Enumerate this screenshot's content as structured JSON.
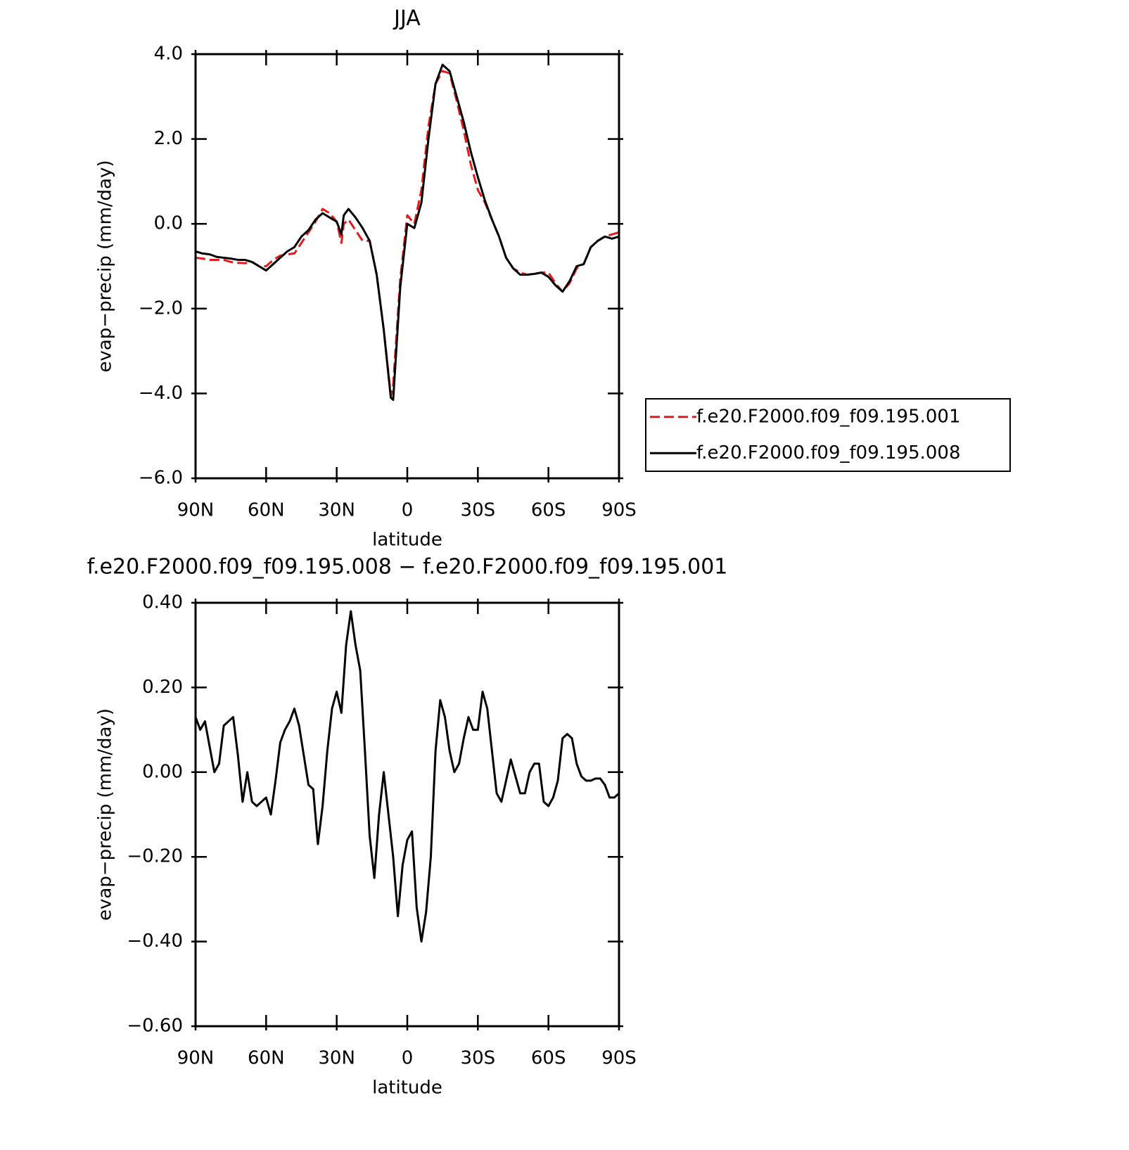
{
  "chart_data": [
    {
      "type": "line",
      "title": "JJA",
      "xlabel": "latitude",
      "ylabel": "evap−precip (mm/day)",
      "x": [
        90,
        87,
        84,
        81,
        78,
        75,
        72,
        69,
        66,
        63,
        60,
        57,
        54,
        51,
        48,
        45,
        42,
        39,
        36,
        33,
        30,
        28,
        27,
        25,
        22,
        19,
        16,
        13,
        10,
        7,
        6,
        3,
        0,
        -3,
        -6,
        -9,
        -12,
        -15,
        -18,
        -21,
        -24,
        -27,
        -30,
        -33,
        -36,
        -39,
        -42,
        -45,
        -48,
        -51,
        -54,
        -57,
        -60,
        -63,
        -66,
        -69,
        -72,
        -75,
        -78,
        -81,
        -84,
        -87,
        -90
      ],
      "series": [
        {
          "name": "f.e20.F2000.f09_f09.195.001",
          "color": "#e41a1c",
          "linestyle": "dashed",
          "values": [
            -0.8,
            -0.82,
            -0.85,
            -0.85,
            -0.85,
            -0.9,
            -0.92,
            -0.93,
            -0.9,
            -1.0,
            -1.0,
            -0.85,
            -0.75,
            -0.72,
            -0.7,
            -0.45,
            -0.2,
            0.05,
            0.35,
            0.25,
            0.05,
            -0.45,
            0.0,
            0.1,
            -0.15,
            -0.4,
            -0.4,
            -1.2,
            -2.5,
            -4.05,
            -3.8,
            -1.3,
            0.2,
            0.0,
            0.8,
            2.3,
            3.3,
            3.6,
            3.55,
            2.9,
            2.2,
            1.4,
            0.8,
            0.5,
            0.1,
            -0.3,
            -0.8,
            -1.05,
            -1.15,
            -1.2,
            -1.18,
            -1.15,
            -1.15,
            -1.4,
            -1.6,
            -1.4,
            -1.05,
            -0.95,
            -0.55,
            -0.4,
            -0.3,
            -0.25,
            -0.2
          ]
        },
        {
          "name": "f.e20.F2000.f09_f09.195.008",
          "color": "#000000",
          "linestyle": "solid",
          "values": [
            -0.65,
            -0.7,
            -0.72,
            -0.78,
            -0.8,
            -0.82,
            -0.85,
            -0.85,
            -0.9,
            -1.0,
            -1.1,
            -0.95,
            -0.8,
            -0.65,
            -0.55,
            -0.3,
            -0.15,
            0.1,
            0.25,
            0.15,
            0.05,
            -0.25,
            0.2,
            0.35,
            0.15,
            -0.1,
            -0.4,
            -1.2,
            -2.5,
            -4.1,
            -4.15,
            -1.5,
            0.0,
            -0.1,
            0.5,
            2.0,
            3.3,
            3.75,
            3.6,
            3.0,
            2.4,
            1.7,
            1.1,
            0.55,
            0.1,
            -0.3,
            -0.8,
            -1.05,
            -1.2,
            -1.2,
            -1.18,
            -1.15,
            -1.25,
            -1.45,
            -1.6,
            -1.35,
            -1.0,
            -0.95,
            -0.55,
            -0.4,
            -0.3,
            -0.35,
            -0.3
          ]
        }
      ],
      "xlim": [
        90,
        -90
      ],
      "xticks": [
        {
          "value": 90,
          "label": "90N"
        },
        {
          "value": 60,
          "label": "60N"
        },
        {
          "value": 30,
          "label": "30N"
        },
        0,
        {
          "value": -30,
          "label": "30S"
        },
        {
          "value": -60,
          "label": "60S"
        },
        {
          "value": -90,
          "label": "90S"
        }
      ],
      "ylim": [
        -6,
        4
      ],
      "yticks": [
        {
          "value": 4,
          "label": "4.0"
        },
        {
          "value": 2,
          "label": "2.0"
        },
        {
          "value": 0,
          "label": "0.0"
        },
        {
          "value": -2,
          "label": "−2.0"
        },
        {
          "value": -4,
          "label": "−4.0"
        },
        {
          "value": -6,
          "label": "−6.0"
        }
      ],
      "legend": "outside-right"
    },
    {
      "type": "line",
      "title": "f.e20.F2000.f09_f09.195.008 − f.e20.F2000.f09_f09.195.001",
      "xlabel": "latitude",
      "ylabel": "evap−precip (mm/day)",
      "color": "#000000",
      "x": [
        90,
        88,
        86,
        84,
        82,
        80,
        78,
        76,
        74,
        72,
        70,
        68,
        66,
        64,
        62,
        60,
        58,
        56,
        54,
        52,
        50,
        48,
        46,
        44,
        42,
        40,
        38,
        36,
        34,
        32,
        30,
        28,
        26,
        24,
        22,
        20,
        18,
        16,
        14,
        12,
        10,
        8,
        6,
        4,
        2,
        0,
        -2,
        -4,
        -6,
        -8,
        -10,
        -12,
        -14,
        -16,
        -18,
        -20,
        -22,
        -24,
        -26,
        -28,
        -30,
        -32,
        -34,
        -36,
        -38,
        -40,
        -42,
        -44,
        -46,
        -48,
        -50,
        -52,
        -54,
        -56,
        -58,
        -60,
        -62,
        -64,
        -66,
        -68,
        -70,
        -72,
        -74,
        -76,
        -78,
        -80,
        -82,
        -84,
        -86,
        -88,
        -90
      ],
      "values": [
        0.13,
        0.1,
        0.12,
        0.06,
        0.0,
        0.02,
        0.11,
        0.12,
        0.13,
        0.04,
        -0.07,
        0.0,
        -0.07,
        -0.08,
        -0.07,
        -0.06,
        -0.1,
        -0.02,
        0.07,
        0.1,
        0.12,
        0.15,
        0.11,
        0.04,
        -0.03,
        -0.04,
        -0.17,
        -0.08,
        0.05,
        0.15,
        0.19,
        0.14,
        0.3,
        0.38,
        0.3,
        0.24,
        0.05,
        -0.15,
        -0.25,
        -0.1,
        0.0,
        -0.1,
        -0.2,
        -0.34,
        -0.22,
        -0.16,
        -0.14,
        -0.32,
        -0.4,
        -0.33,
        -0.2,
        0.05,
        0.17,
        0.13,
        0.05,
        0.0,
        0.02,
        0.08,
        0.13,
        0.1,
        0.1,
        0.19,
        0.15,
        0.05,
        -0.05,
        -0.07,
        -0.02,
        0.03,
        -0.01,
        -0.05,
        -0.05,
        0.0,
        0.02,
        0.02,
        -0.07,
        -0.08,
        -0.06,
        -0.02,
        0.08,
        0.09,
        0.08,
        0.02,
        -0.01,
        -0.02,
        -0.02,
        -0.015,
        -0.015,
        -0.03,
        -0.06,
        -0.06,
        -0.05
      ],
      "xlim": [
        90,
        -90
      ],
      "xticks": [
        {
          "value": 90,
          "label": "90N"
        },
        {
          "value": 60,
          "label": "60N"
        },
        {
          "value": 30,
          "label": "30N"
        },
        0,
        {
          "value": -30,
          "label": "30S"
        },
        {
          "value": -60,
          "label": "60S"
        },
        {
          "value": -90,
          "label": "90S"
        }
      ],
      "ylim": [
        -0.6,
        0.4
      ],
      "yticks": [
        {
          "value": 0.4,
          "label": "0.40"
        },
        {
          "value": 0.2,
          "label": "0.20"
        },
        {
          "value": 0,
          "label": "0.00"
        },
        {
          "value": -0.2,
          "label": "−0.20"
        },
        {
          "value": -0.4,
          "label": "−0.40"
        },
        {
          "value": -0.6,
          "label": "−0.60"
        }
      ]
    }
  ]
}
